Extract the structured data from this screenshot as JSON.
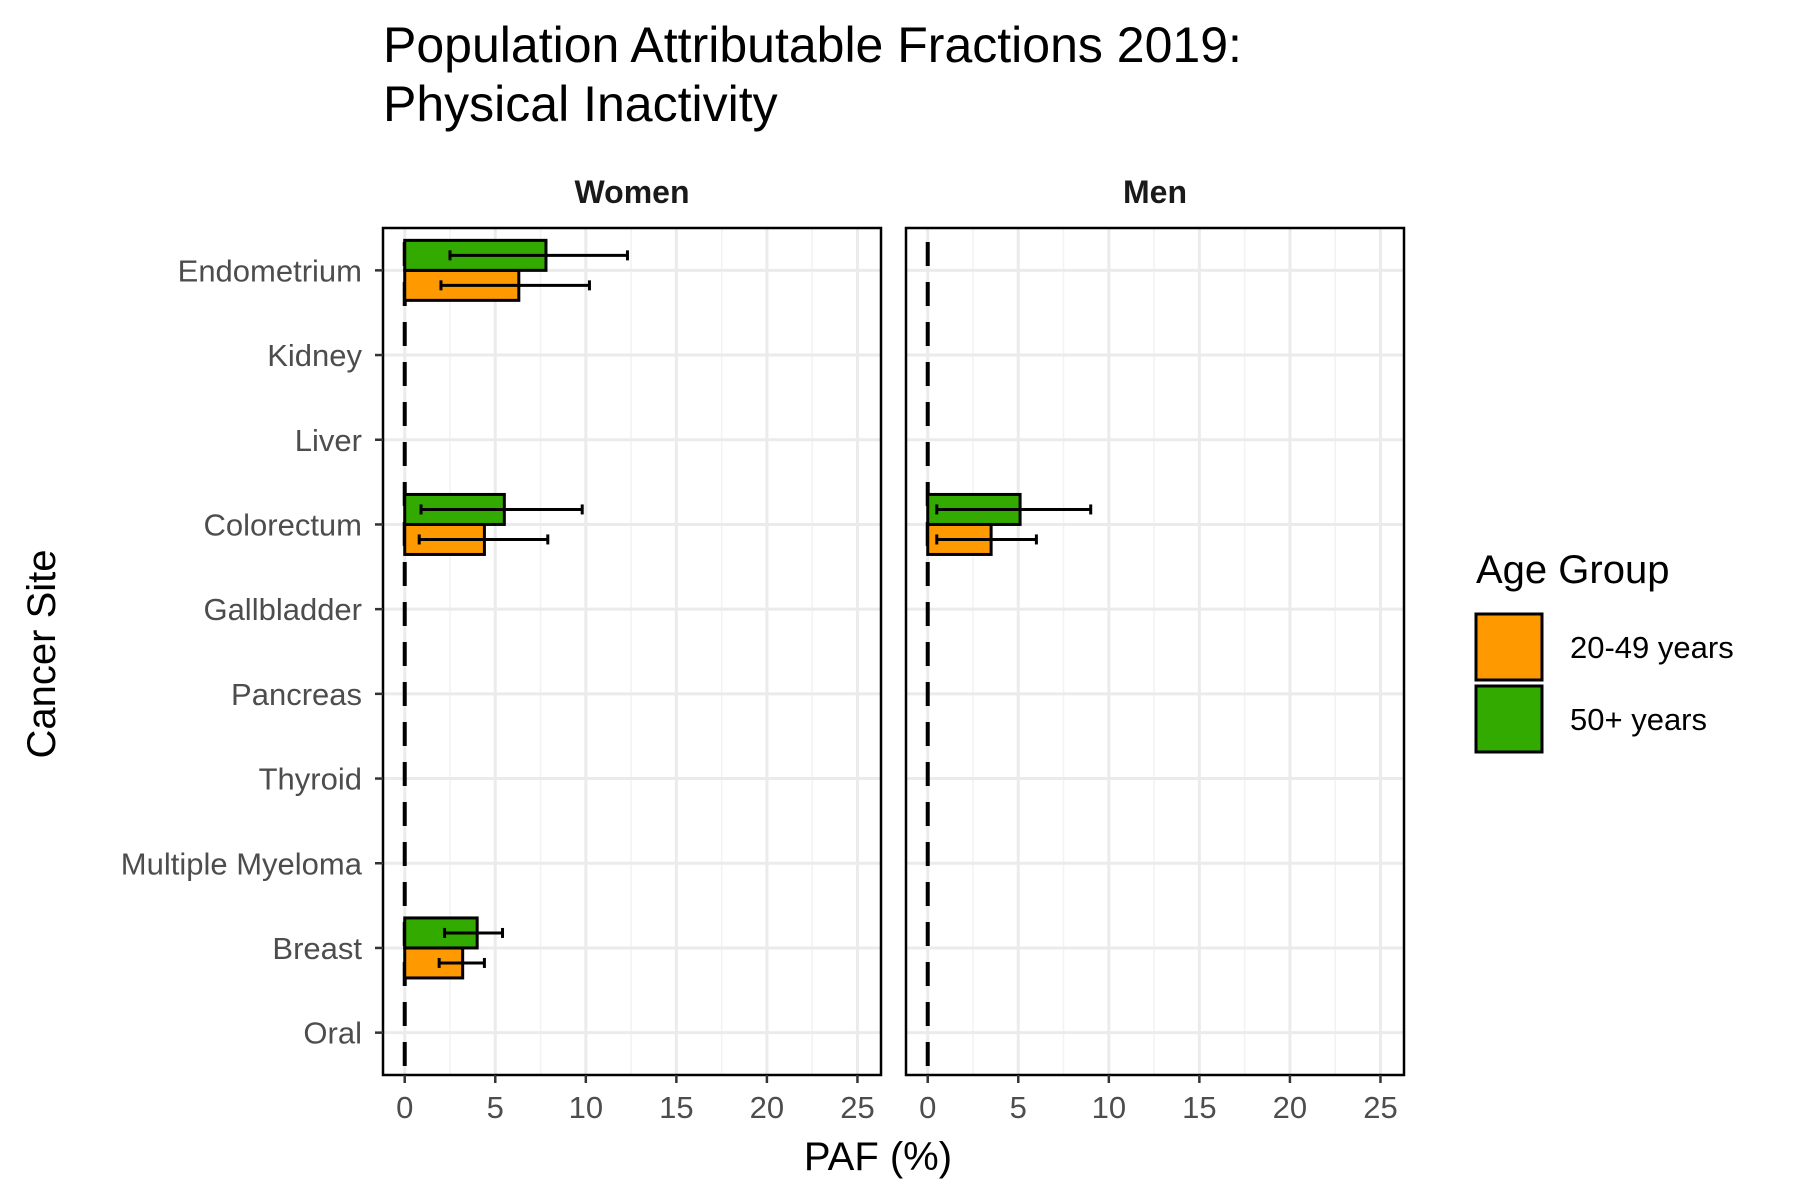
{
  "chart_data": {
    "type": "bar",
    "orientation": "horizontal",
    "title_lines": [
      "Population Attributable Fractions 2019:",
      "Physical Inactivity"
    ],
    "xlabel": "PAF (%)",
    "ylabel": "Cancer Site",
    "xlim": [
      0,
      25
    ],
    "xticks": [
      "0",
      "5",
      "10",
      "15",
      "20",
      "25"
    ],
    "grid": true,
    "legend_position": "right",
    "legend_title": "Age Group",
    "categories": [
      "Endometrium",
      "Kidney",
      "Liver",
      "Colorectum",
      "Gallbladder",
      "Pancreas",
      "Thyroid",
      "Multiple Myeloma",
      "Breast",
      "Oral"
    ],
    "series_meta": [
      {
        "name": "20-49 years",
        "color": "#FF9900"
      },
      {
        "name": "50+ years",
        "color": "#33AA00"
      }
    ],
    "panels": [
      {
        "name": "Women",
        "series": [
          {
            "name": "20-49 years",
            "values": [
              6.3,
              0,
              0,
              4.4,
              0,
              0,
              0,
              0,
              3.2,
              0
            ],
            "lower": [
              2.0,
              0,
              0,
              0.8,
              0,
              0,
              0,
              0,
              1.9,
              0
            ],
            "upper": [
              10.2,
              0,
              0,
              7.9,
              0,
              0,
              0,
              0,
              4.4,
              0
            ]
          },
          {
            "name": "50+ years",
            "values": [
              7.8,
              0,
              0,
              5.5,
              0,
              0,
              0,
              0,
              4.0,
              0
            ],
            "lower": [
              2.5,
              0,
              0,
              0.9,
              0,
              0,
              0,
              0,
              2.2,
              0
            ],
            "upper": [
              12.3,
              0,
              0,
              9.8,
              0,
              0,
              0,
              0,
              5.4,
              0
            ]
          }
        ]
      },
      {
        "name": "Men",
        "series": [
          {
            "name": "20-49 years",
            "values": [
              0,
              0,
              0,
              3.5,
              0,
              0,
              0,
              0,
              0,
              0
            ],
            "lower": [
              0,
              0,
              0,
              0.5,
              0,
              0,
              0,
              0,
              0,
              0
            ],
            "upper": [
              0,
              0,
              0,
              6.0,
              0,
              0,
              0,
              0,
              0,
              0
            ]
          },
          {
            "name": "50+ years",
            "values": [
              0,
              0,
              0,
              5.1,
              0,
              0,
              0,
              0,
              0,
              0
            ],
            "lower": [
              0,
              0,
              0,
              0.5,
              0,
              0,
              0,
              0,
              0,
              0
            ],
            "upper": [
              0,
              0,
              0,
              9.0,
              0,
              0,
              0,
              0,
              0,
              0
            ]
          }
        ]
      }
    ]
  }
}
